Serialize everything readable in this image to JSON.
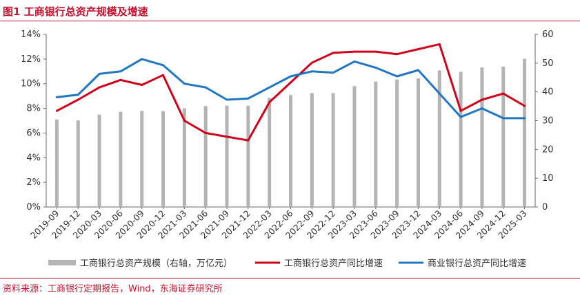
{
  "header": {
    "title": "图1  工商银行总资产规模及增速"
  },
  "footer": {
    "source": "资料来源：工商银行定期报告，Wind，东海证券研究所"
  },
  "colors": {
    "accent": "#c8102e",
    "bar": "#b4b4b4",
    "line_icbc": "#d0021b",
    "line_commercial": "#1f77c4"
  },
  "chart_data": {
    "type": "bar",
    "categories": [
      "2019-09",
      "2019-12",
      "2020-03",
      "2020-06",
      "2020-09",
      "2020-12",
      "2021-03",
      "2021-06",
      "2021-09",
      "2021-12",
      "2022-03",
      "2022-06",
      "2022-09",
      "2022-12",
      "2023-03",
      "2023-06",
      "2023-09",
      "2023-12",
      "2024-03",
      "2024-06",
      "2024-09",
      "2024-12",
      "2025-03"
    ],
    "left_axis": {
      "ticks": [
        "0%",
        "2%",
        "4%",
        "6%",
        "8%",
        "10%",
        "12%",
        "14%"
      ],
      "ylim": [
        0,
        14
      ]
    },
    "right_axis": {
      "ticks": [
        "0",
        "10",
        "20",
        "30",
        "40",
        "50",
        "60"
      ],
      "ylim": [
        0,
        60
      ]
    },
    "grid": false,
    "legend_position": "bottom",
    "series": [
      {
        "name": "工商银行总资产规模（右轴，万亿元）",
        "type": "bar",
        "axis": "right",
        "values": [
          30.4,
          30.1,
          32.1,
          33.1,
          33.4,
          33.3,
          34.3,
          35.1,
          35.2,
          35.2,
          37.9,
          38.9,
          39.6,
          39.6,
          42.0,
          43.6,
          44.3,
          44.7,
          47.5,
          47.0,
          48.5,
          48.8,
          51.5
        ]
      },
      {
        "name": "工商银行总资产同比增速",
        "type": "line",
        "axis": "left",
        "values": [
          7.8,
          8.7,
          9.7,
          10.3,
          9.9,
          10.7,
          7.0,
          6.0,
          5.7,
          5.4,
          8.5,
          10.1,
          11.7,
          12.5,
          12.6,
          12.6,
          12.4,
          12.8,
          13.2,
          7.8,
          8.7,
          9.2,
          8.2
        ]
      },
      {
        "name": "商业银行总资产同比增速",
        "type": "line",
        "axis": "left",
        "values": [
          8.9,
          9.1,
          10.8,
          11.0,
          12.0,
          11.5,
          10.0,
          9.7,
          8.7,
          8.8,
          9.7,
          10.6,
          11.0,
          10.9,
          11.8,
          11.3,
          10.6,
          11.1,
          9.2,
          7.3,
          8.0,
          7.2,
          7.2
        ]
      }
    ]
  }
}
